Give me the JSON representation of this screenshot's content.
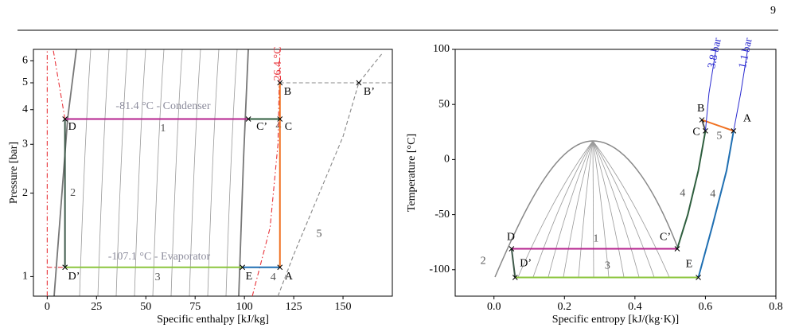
{
  "page_number": "9",
  "chart_data": [
    {
      "type": "line",
      "xlabel": "Specific enthalpy [kJ/kg]",
      "ylabel": "Pressure [bar]",
      "log_y": true,
      "xlim": [
        -7,
        175
      ],
      "ylim": [
        0.85,
        6.6
      ],
      "xticks": [
        0,
        25,
        50,
        75,
        100,
        125,
        150
      ],
      "yticks": [
        1,
        2,
        3,
        4,
        5,
        6
      ],
      "series": [
        {
          "color": "#e8333a",
          "dash": "dashdot",
          "x": [
            0,
            0
          ],
          "values": [
            0.85,
            6.6
          ]
        },
        {
          "color": "#e8333a",
          "dash": "dashdot",
          "x": [
            9,
            3
          ],
          "values": [
            3.7,
            6.6
          ]
        },
        {
          "color": "#e8333a",
          "dash": "dashdot",
          "x": [
            0,
            9
          ],
          "values": [
            1.08,
            1.08
          ]
        },
        {
          "color": "#e8333a",
          "dash": "dashdot",
          "x": [
            104,
            113,
            117,
            118
          ],
          "values": [
            0.85,
            1.5,
            3,
            6.6
          ]
        },
        {
          "name": "1",
          "color": "#b5218e",
          "x": [
            9,
            102
          ],
          "values": [
            3.7,
            3.7
          ]
        },
        {
          "name": "2",
          "color": "#3e5a4a",
          "x": [
            9,
            9
          ],
          "values": [
            3.7,
            1.08
          ]
        },
        {
          "name": "3",
          "color": "#8cc63f",
          "x": [
            9,
            99
          ],
          "values": [
            1.08,
            1.08
          ]
        },
        {
          "name": "4",
          "color": "#1f6fb2",
          "x": [
            99,
            118
          ],
          "values": [
            1.08,
            1.08
          ]
        },
        {
          "name": "4",
          "color": "#2e5e3e",
          "x": [
            102,
            118
          ],
          "values": [
            3.7,
            3.7
          ]
        },
        {
          "name": "5",
          "color": "#888888",
          "dash": "dashed",
          "x": [
            117,
            125,
            138,
            150,
            158,
            170
          ],
          "values": [
            0.85,
            1.2,
            2,
            3.2,
            5,
            6.4
          ]
        },
        {
          "color": "#f07020",
          "x": [
            118,
            118
          ],
          "values": [
            1.08,
            5
          ]
        },
        {
          "color": "#888888",
          "dash": "dashed",
          "x": [
            118,
            175
          ],
          "values": [
            5,
            5
          ]
        }
      ],
      "points": [
        {
          "label": "A",
          "x": 118,
          "y": 1.08
        },
        {
          "label": "B",
          "x": 118,
          "y": 5
        },
        {
          "label": "C",
          "x": 118,
          "y": 3.7
        },
        {
          "label": "D",
          "x": 9,
          "y": 3.7
        },
        {
          "label": "C’",
          "x": 102,
          "y": 3.7
        },
        {
          "label": "D’",
          "x": 9,
          "y": 1.08
        },
        {
          "label": "E",
          "x": 99,
          "y": 1.08
        },
        {
          "label": "B’",
          "x": 158,
          "y": 5
        }
      ],
      "annotations": [
        "-81.4 °C - Condenser",
        "-107.1 °C - Evaporator",
        "26.4 °C"
      ]
    },
    {
      "type": "line",
      "xlabel": "Specific entropy [kJ/(kg·K)]",
      "ylabel": "Temperature [°C]",
      "xlim": [
        -0.11,
        0.8
      ],
      "ylim": [
        -124,
        100
      ],
      "xticks": [
        {
          "value": 0,
          "label": "0.0"
        },
        0.2,
        0.4,
        0.6,
        0.8
      ],
      "yticks": [
        -100,
        -50,
        0,
        50,
        100
      ],
      "series": [
        {
          "name": "1",
          "color": "#b5218e",
          "x": [
            0.05,
            0.52
          ],
          "values": [
            -81,
            -81
          ]
        },
        {
          "name": "2",
          "color": "#3e5a4a",
          "x": [
            0.05,
            0.06
          ],
          "values": [
            -81,
            -107
          ]
        },
        {
          "name": "3",
          "color": "#8cc63f",
          "x": [
            0.06,
            0.58
          ],
          "values": [
            -107,
            -107
          ]
        },
        {
          "name": "4",
          "color": "#2e5e3e",
          "x": [
            0.52,
            0.55,
            0.58,
            0.6
          ],
          "values": [
            -81,
            -50,
            -10,
            26
          ]
        },
        {
          "name": "4",
          "color": "#1f6fb2",
          "x": [
            0.58,
            0.62,
            0.66,
            0.68
          ],
          "values": [
            -107,
            -60,
            -10,
            26
          ]
        },
        {
          "name": "5",
          "color": "#f07020",
          "x": [
            0.59,
            0.68
          ],
          "values": [
            36,
            26
          ]
        },
        {
          "color": "#555555",
          "x": [
            0.6,
            0.59
          ],
          "values": [
            26,
            36
          ]
        },
        {
          "name": "3.8 bar",
          "color": "#2a2ad0",
          "x": [
            0.6,
            0.61,
            0.63
          ],
          "values": [
            26,
            60,
            100
          ]
        },
        {
          "name": "1.1 bar",
          "color": "#2a2ad0",
          "x": [
            0.68,
            0.7,
            0.72
          ],
          "values": [
            26,
            60,
            100
          ]
        }
      ],
      "points": [
        {
          "label": "A",
          "x": 0.68,
          "y": 26
        },
        {
          "label": "B",
          "x": 0.59,
          "y": 36
        },
        {
          "label": "C",
          "x": 0.6,
          "y": 26
        },
        {
          "label": "D",
          "x": 0.05,
          "y": -81
        },
        {
          "label": "C’",
          "x": 0.52,
          "y": -81
        },
        {
          "label": "D’",
          "x": 0.06,
          "y": -107
        },
        {
          "label": "E",
          "x": 0.58,
          "y": -107
        }
      ]
    }
  ]
}
